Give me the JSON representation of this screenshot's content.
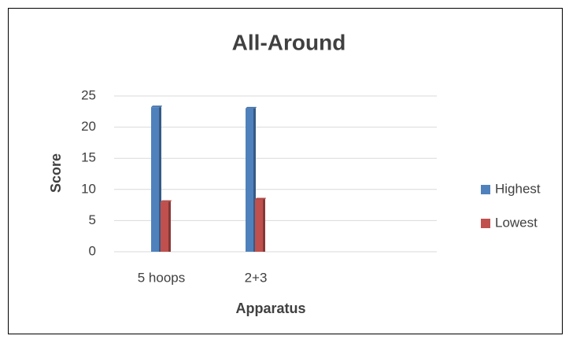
{
  "chart_data": {
    "type": "bar",
    "title": "All-Around",
    "x_label": "Apparatus",
    "y_label": "Score",
    "categories": [
      "5 hoops",
      "2+3",
      null
    ],
    "series": [
      {
        "name": "Highest",
        "color": "#4f81bd",
        "values": [
          23.2,
          23,
          null
        ]
      },
      {
        "name": "Lowest",
        "color": "#c0504d",
        "values": [
          8,
          8.4,
          null
        ]
      }
    ],
    "ylim": [
      0,
      25
    ],
    "yticks": [
      0,
      5,
      10,
      15,
      20,
      25
    ],
    "grid": true,
    "legend": "right"
  }
}
